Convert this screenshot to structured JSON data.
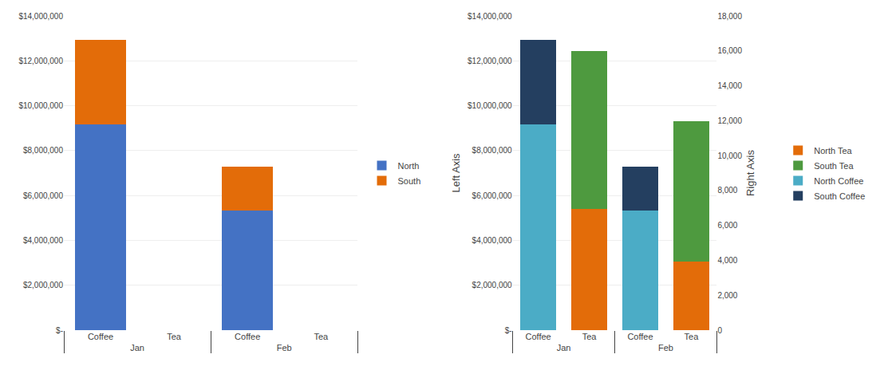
{
  "chart_data": [
    {
      "type": "bar",
      "stacked": true,
      "grid": true,
      "legend": "right",
      "categories": [
        [
          "Jan",
          "Coffee"
        ],
        [
          "Jan",
          "Tea"
        ],
        [
          "Feb",
          "Coffee"
        ],
        [
          "Feb",
          "Tea"
        ]
      ],
      "series": [
        {
          "name": "North",
          "color": "#4472c4",
          "values": [
            9174213,
            0,
            5328078,
            0
          ]
        },
        {
          "name": "South",
          "color": "#e36c09",
          "values": [
            3764424,
            0,
            1957886,
            0
          ]
        }
      ],
      "ylim": [
        0,
        14000000
      ],
      "yticks": [
        {
          "value": 0,
          "label": "$-"
        },
        {
          "value": 2000000,
          "label": "$2,000,000"
        },
        {
          "value": 4000000,
          "label": "$4,000,000"
        },
        {
          "value": 6000000,
          "label": "$6,000,000"
        },
        {
          "value": 8000000,
          "label": "$8,000,000"
        },
        {
          "value": 10000000,
          "label": "$10,000,000"
        },
        {
          "value": 12000000,
          "label": "$12,000,000"
        },
        {
          "value": 14000000,
          "label": "$14,000,000"
        }
      ]
    },
    {
      "type": "bar",
      "stacked": true,
      "grid": true,
      "legend": "right",
      "ylabel": "Left Axis",
      "y2label": "Right Axis",
      "categories": [
        [
          "Jan",
          "Coffee"
        ],
        [
          "Jan",
          "Tea"
        ],
        [
          "Feb",
          "Coffee"
        ],
        [
          "Feb",
          "Tea"
        ]
      ],
      "series": [
        {
          "name": "North Coffee",
          "color": "#4bacc6",
          "values": [
            9174213,
            null,
            5328078,
            null
          ]
        },
        {
          "name": "South Coffee",
          "color": "#243f60",
          "values": [
            3764424,
            null,
            1957886,
            null
          ]
        },
        {
          "name": "North Tea",
          "color": "#e36c09",
          "axis": "y2",
          "values": [
            null,
            6949,
            null,
            3912
          ]
        },
        {
          "name": "South Tea",
          "color": "#4e9a3f",
          "axis": "y2",
          "values": [
            null,
            9026,
            null,
            8051
          ]
        }
      ],
      "ylim": [
        0,
        14000000
      ],
      "yticks": [
        {
          "value": 0,
          "label": "$-"
        },
        {
          "value": 2000000,
          "label": "$2,000,000"
        },
        {
          "value": 4000000,
          "label": "$4,000,000"
        },
        {
          "value": 6000000,
          "label": "$6,000,000"
        },
        {
          "value": 8000000,
          "label": "$8,000,000"
        },
        {
          "value": 10000000,
          "label": "$10,000,000"
        },
        {
          "value": 12000000,
          "label": "$12,000,000"
        },
        {
          "value": 14000000,
          "label": "$14,000,000"
        }
      ],
      "y2lim": [
        0,
        18000
      ],
      "y2ticks": [
        0,
        {
          "value": 2000,
          "label": "2,000"
        },
        {
          "value": 4000,
          "label": "4,000"
        },
        {
          "value": 6000,
          "label": "6,000"
        },
        {
          "value": 8000,
          "label": "8,000"
        },
        {
          "value": 10000,
          "label": "10,000"
        },
        {
          "value": 12000,
          "label": "12,000"
        },
        {
          "value": 14000,
          "label": "14,000"
        },
        {
          "value": 16000,
          "label": "16,000"
        },
        {
          "value": 18000,
          "label": "18,000"
        }
      ]
    }
  ]
}
